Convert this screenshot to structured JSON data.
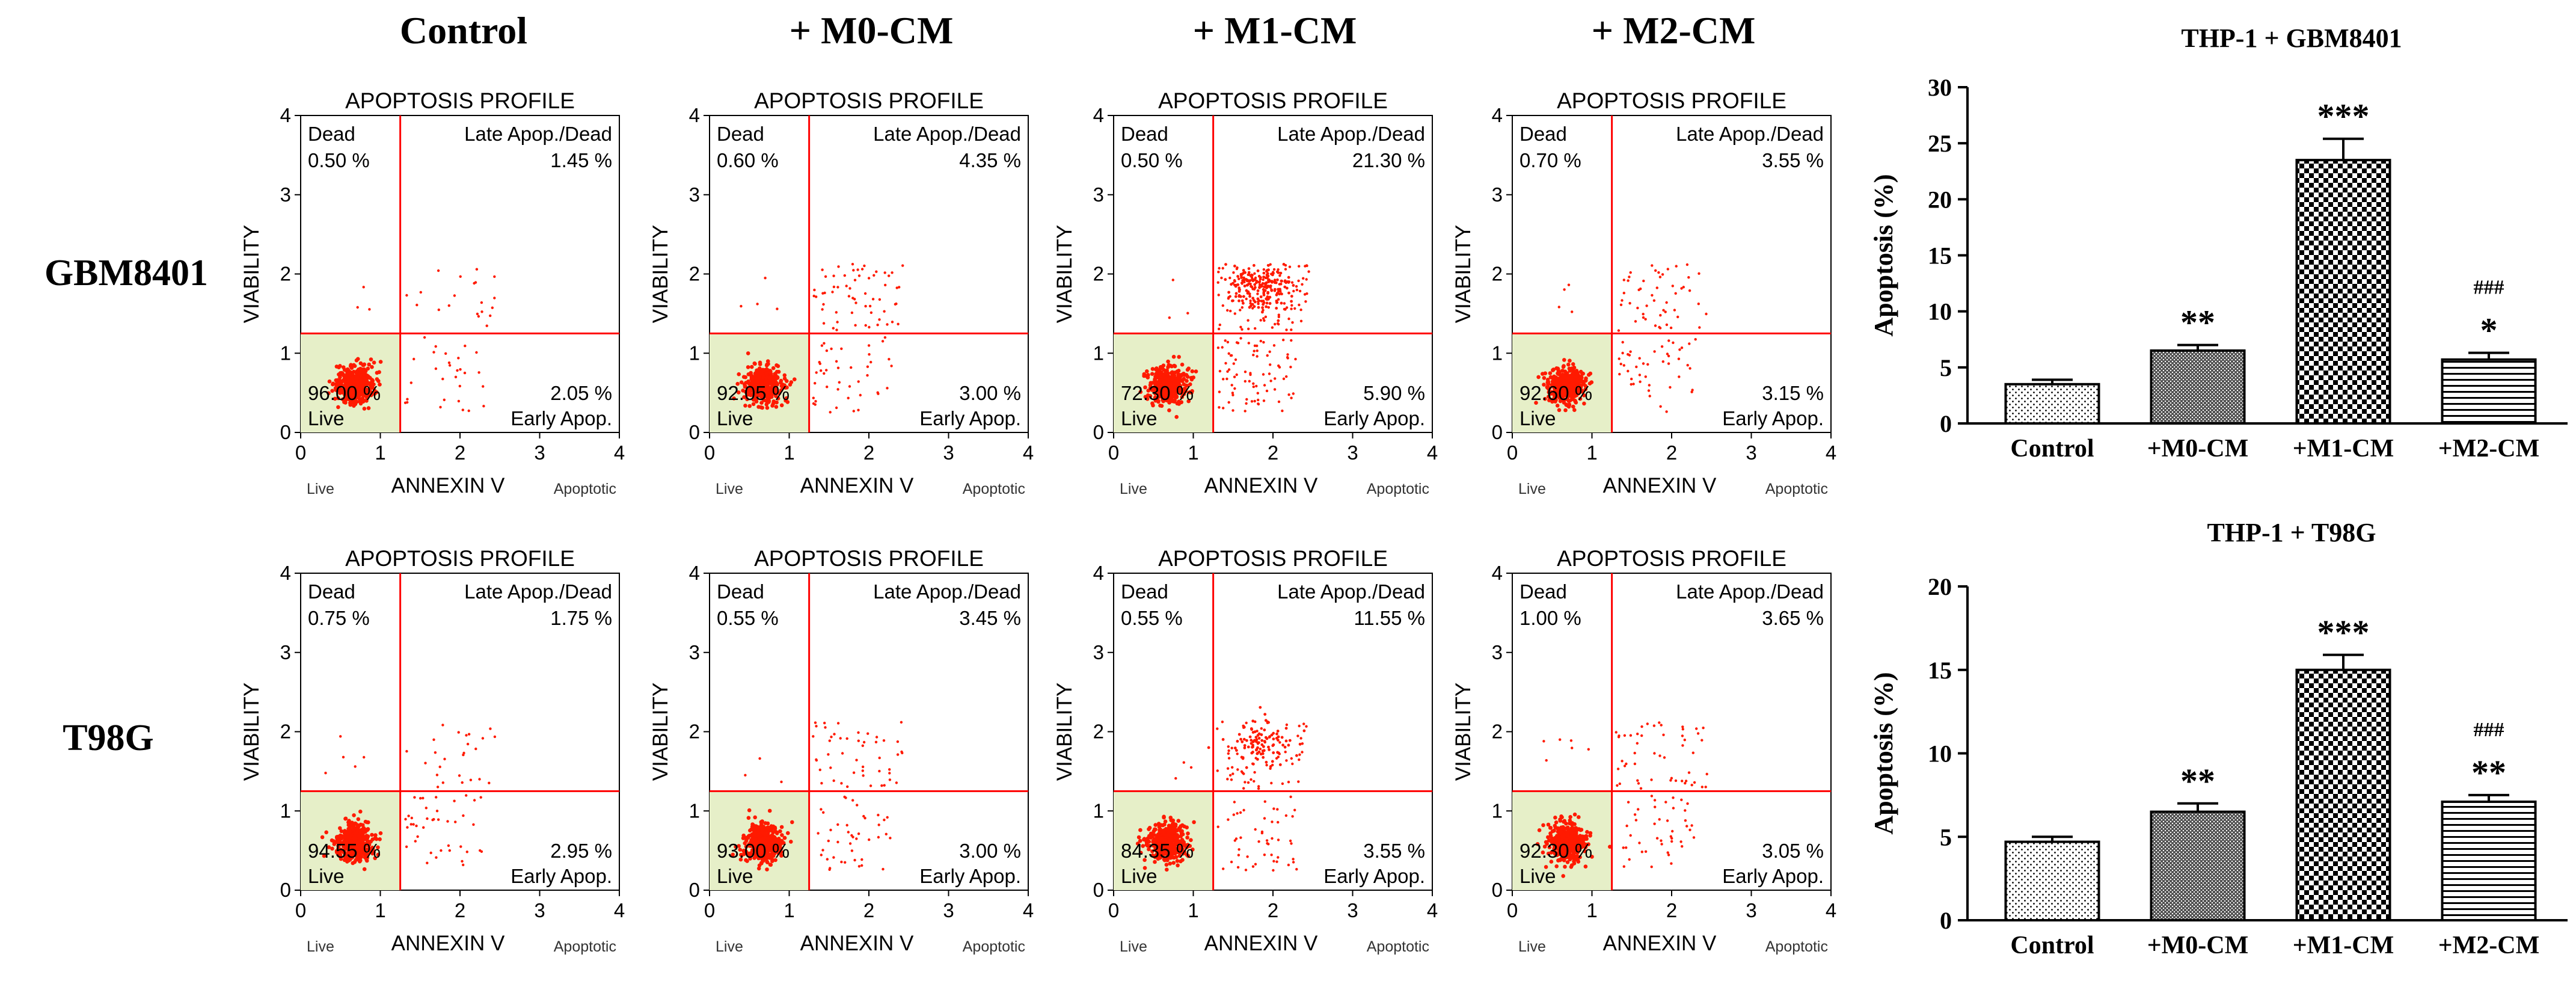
{
  "conditions": [
    "Control",
    "+ M0-CM",
    "+ M1-CM",
    "+ M2-CM"
  ],
  "cell_lines": [
    "GBM8401",
    "T98G"
  ],
  "colors": {
    "dot": "#ff1a00",
    "gate_line": "#ff0000",
    "live_fill": "#e6efc8",
    "axis": "#000000",
    "text": "#000000"
  },
  "flow_common": {
    "title": "APOPTOSIS PROFILE",
    "xlabel": "ANNEXIN V",
    "ylabel": "VIABILITY",
    "x_ticks": [
      "0",
      "1",
      "2",
      "3",
      "4"
    ],
    "y_ticks": [
      "0",
      "1",
      "2",
      "3",
      "4"
    ],
    "xlim": [
      0,
      4
    ],
    "ylim": [
      0,
      4
    ],
    "gate_x": 1.25,
    "gate_y": 1.25,
    "live_word": "Live",
    "apoptotic_word": "Apoptotic",
    "q_dead_label": "Dead",
    "q_late_label": "Late Apop./Dead",
    "q_live_label": "Live",
    "q_early_label": "Early Apop."
  },
  "chart_data": [
    {
      "type": "scatter",
      "title": "APOPTOSIS PROFILE",
      "row_label": "GBM8401",
      "condition": "Control",
      "quadrants": {
        "dead": "0.50 %",
        "late": "1.45 %",
        "live": "96.00 %",
        "early": "2.05 %"
      },
      "xlim": [
        0,
        4
      ],
      "ylim": [
        0,
        4
      ]
    },
    {
      "type": "scatter",
      "title": "APOPTOSIS PROFILE",
      "row_label": "GBM8401",
      "condition": "+ M0-CM",
      "quadrants": {
        "dead": "0.60 %",
        "late": "4.35 %",
        "live": "92.05 %",
        "early": "3.00 %"
      },
      "xlim": [
        0,
        4
      ],
      "ylim": [
        0,
        4
      ]
    },
    {
      "type": "scatter",
      "title": "APOPTOSIS PROFILE",
      "row_label": "GBM8401",
      "condition": "+ M1-CM",
      "quadrants": {
        "dead": "0.50 %",
        "late": "21.30 %",
        "live": "72.30 %",
        "early": "5.90 %"
      },
      "xlim": [
        0,
        4
      ],
      "ylim": [
        0,
        4
      ]
    },
    {
      "type": "scatter",
      "title": "APOPTOSIS PROFILE",
      "row_label": "GBM8401",
      "condition": "+ M2-CM",
      "quadrants": {
        "dead": "0.70 %",
        "late": "3.55 %",
        "live": "92.60 %",
        "early": "3.15 %"
      },
      "xlim": [
        0,
        4
      ],
      "ylim": [
        0,
        4
      ]
    },
    {
      "type": "scatter",
      "title": "APOPTOSIS PROFILE",
      "row_label": "T98G",
      "condition": "Control",
      "quadrants": {
        "dead": "0.75 %",
        "late": "1.75 %",
        "live": "94.55 %",
        "early": "2.95 %"
      },
      "xlim": [
        0,
        4
      ],
      "ylim": [
        0,
        4
      ]
    },
    {
      "type": "scatter",
      "title": "APOPTOSIS PROFILE",
      "row_label": "T98G",
      "condition": "+ M0-CM",
      "quadrants": {
        "dead": "0.55 %",
        "late": "3.45 %",
        "live": "93.00 %",
        "early": "3.00 %"
      },
      "xlim": [
        0,
        4
      ],
      "ylim": [
        0,
        4
      ]
    },
    {
      "type": "scatter",
      "title": "APOPTOSIS PROFILE",
      "row_label": "T98G",
      "condition": "+ M1-CM",
      "quadrants": {
        "dead": "0.55 %",
        "late": "11.55 %",
        "live": "84.35 %",
        "early": "3.55 %"
      },
      "xlim": [
        0,
        4
      ],
      "ylim": [
        0,
        4
      ]
    },
    {
      "type": "scatter",
      "title": "APOPTOSIS PROFILE",
      "row_label": "T98G",
      "condition": "+ M2-CM",
      "quadrants": {
        "dead": "1.00 %",
        "late": "3.65 %",
        "live": "92.30 %",
        "early": "3.05 %"
      },
      "xlim": [
        0,
        4
      ],
      "ylim": [
        0,
        4
      ]
    },
    {
      "type": "bar",
      "title": "THP-1 + GBM8401",
      "ylabel": "Apoptosis (%)",
      "xlabel": "",
      "categories": [
        "Control",
        "+M0-CM",
        "+M1-CM",
        "+M2-CM"
      ],
      "values": [
        3.5,
        6.5,
        23.5,
        5.7
      ],
      "errors": [
        0.4,
        0.5,
        1.9,
        0.6
      ],
      "significance": [
        "",
        "**",
        "***",
        "*"
      ],
      "significance2": [
        "",
        "",
        "",
        "###"
      ],
      "ylim": [
        0,
        30
      ],
      "yticks": [
        0,
        5,
        10,
        15,
        20,
        25,
        30
      ],
      "patterns": [
        "dots",
        "dense",
        "checker",
        "hlines"
      ]
    },
    {
      "type": "bar",
      "title": "THP-1 + T98G",
      "ylabel": "Apoptosis (%)",
      "xlabel": "",
      "categories": [
        "Control",
        "+M0-CM",
        "+M1-CM",
        "+M2-CM"
      ],
      "values": [
        4.7,
        6.5,
        15.0,
        7.1
      ],
      "errors": [
        0.3,
        0.5,
        0.9,
        0.4
      ],
      "significance": [
        "",
        "**",
        "***",
        "**"
      ],
      "significance2": [
        "",
        "",
        "",
        "###"
      ],
      "ylim": [
        0,
        20
      ],
      "yticks": [
        0,
        5,
        10,
        15,
        20
      ],
      "patterns": [
        "dots",
        "dense",
        "checker",
        "hlines"
      ]
    }
  ]
}
